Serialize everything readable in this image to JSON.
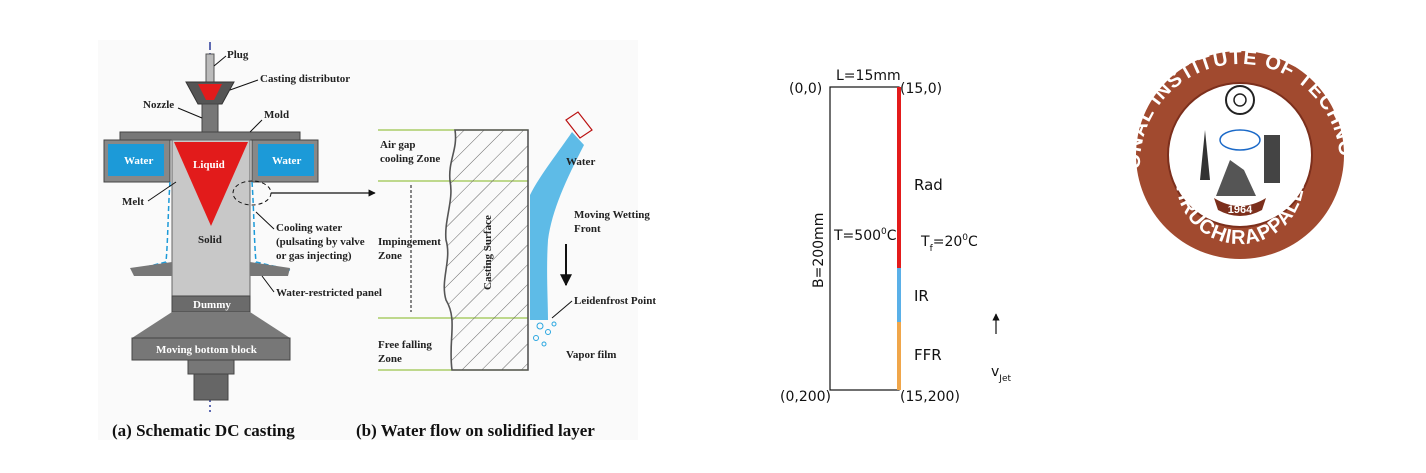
{
  "casting": {
    "plug": "Plug",
    "casting_distributor": "Casting distributor",
    "nozzle": "Nozzle",
    "mold": "Mold",
    "liquid": "Liquid",
    "water_left": "Water",
    "water_right": "Water",
    "melt": "Melt",
    "solid": "Solid",
    "cooling_water_1": "Cooling water",
    "cooling_water_2": "(pulsating by valve",
    "cooling_water_3": "or gas injecting)",
    "water_restricted_panel": "Water-restricted panel",
    "dummy": "Dummy",
    "moving_bottom_block": "Moving bottom block",
    "caption": "(a) Schematic DC casting"
  },
  "flow": {
    "air_gap_1": "Air gap",
    "air_gap_2": "cooling Zone",
    "impingement_1": "Impingement",
    "impingement_2": "Zone",
    "free_falling_1": "Free falling",
    "free_falling_2": "Zone",
    "casting_surface": "Casting Surface",
    "water": "Water",
    "moving_wetting_1": "Moving Wetting",
    "moving_wetting_2": "Front",
    "leidenfrost": "Leidenfrost Point",
    "vapor_film": "Vapor film",
    "caption": "(b) Water flow on solidified layer"
  },
  "domain": {
    "length_label": "L=15mm",
    "corner_tl": "(0,0)",
    "corner_tr": "(15,0)",
    "corner_bl": "(0,200)",
    "corner_br": "(15,200)",
    "breadth_label": "B=200mm",
    "temp_label": "T=500",
    "temp_sup": "0",
    "temp_unit": "C",
    "fluid_T": "T",
    "fluid_sub": "f",
    "fluid_eq": "=20",
    "fluid_sup": "0",
    "fluid_unit": "C",
    "zone_rad": "Rad",
    "zone_ir": "IR",
    "zone_ffr": "FFR",
    "vjet": "v",
    "vjet_sub": "Jet",
    "colors": {
      "rad": "#e31b1b",
      "ir": "#5ab0e8",
      "ffr": "#f0a64a"
    }
  },
  "logo": {
    "ring_text": "NATIONAL INSTITUTE OF TECHNOLOGY",
    "bottom_text": "TIRUCHIRAPPALLI",
    "year": "1964",
    "colors": {
      "ring": "#a14a2f",
      "ring_dark": "#7c2f1c"
    }
  }
}
